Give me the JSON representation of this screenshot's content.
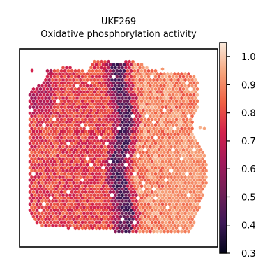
{
  "chart_data": {
    "type": "heatmap",
    "title": "UKF269",
    "subtitle": "Oxidative phosphorylation activity",
    "xlabel": "",
    "ylabel": "",
    "axes_ticks": "none",
    "colormap": "rocket",
    "colormap_stops": [
      "#03051a",
      "#3d1857",
      "#701f57",
      "#a11a5b",
      "#d2204c",
      "#f06043",
      "#f6a47b",
      "#faebdd"
    ],
    "colorbar": {
      "position": "right",
      "min": 0.3,
      "max": 1.05,
      "ticks": [
        "0.3",
        "0.4",
        "0.5",
        "0.6",
        "0.7",
        "0.8",
        "0.9",
        "1.0"
      ]
    },
    "regions": [
      {
        "name": "left tissue region",
        "typical_value": 0.78
      },
      {
        "name": "central dark band",
        "typical_value": 0.45
      },
      {
        "name": "right tissue region",
        "typical_value": 0.9
      }
    ]
  }
}
